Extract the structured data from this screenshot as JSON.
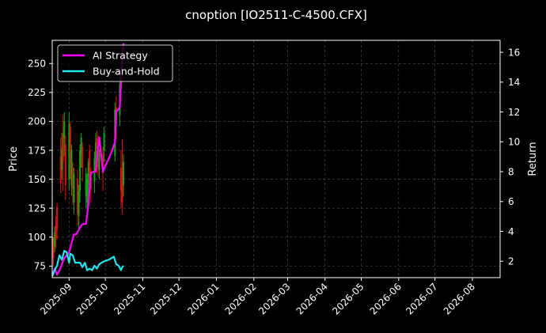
{
  "chart_data": {
    "type": "line",
    "title": "cnoption [IO2511-C-4500.CFX]",
    "ylabel_left": "Price",
    "ylabel_right": "Return",
    "left_ylim": [
      65,
      270
    ],
    "right_ylim": [
      0.9,
      16.8
    ],
    "left_yticks": [
      "75",
      "100",
      "125",
      "150",
      "175",
      "200",
      "225",
      "250"
    ],
    "right_yticks": [
      "2",
      "4",
      "6",
      "8",
      "10",
      "12",
      "14",
      "16"
    ],
    "x_range": [
      "2025-08-18",
      "2026-08-24"
    ],
    "x_ticks": [
      "2025-09",
      "2025-10",
      "2025-11",
      "2025-12",
      "2026-01",
      "2026-02",
      "2026-03",
      "2026-04",
      "2026-05",
      "2026-06",
      "2026-07",
      "2026-08"
    ],
    "x_tick_dates": [
      "2025-09-01",
      "2025-10-01",
      "2025-11-01",
      "2025-12-01",
      "2026-01-01",
      "2026-02-01",
      "2026-03-01",
      "2026-04-01",
      "2026-05-01",
      "2026-06-01",
      "2026-07-01",
      "2026-08-01"
    ],
    "grid": true,
    "legend_position": "top-left",
    "series": [
      {
        "name": "AI Strategy",
        "axis": "right",
        "color": "#ff00ff",
        "points": [
          [
            "2025-08-18",
            1.0
          ],
          [
            "2025-08-20",
            1.5
          ],
          [
            "2025-08-22",
            1.1
          ],
          [
            "2025-08-24",
            1.4
          ],
          [
            "2025-08-26",
            1.8
          ],
          [
            "2025-08-28",
            2.2
          ],
          [
            "2025-08-30",
            2.4
          ],
          [
            "2025-09-01",
            2.6
          ],
          [
            "2025-09-03",
            3.2
          ],
          [
            "2025-09-05",
            3.8
          ],
          [
            "2025-09-07",
            3.8
          ],
          [
            "2025-09-09",
            4.1
          ],
          [
            "2025-09-11",
            4.4
          ],
          [
            "2025-09-13",
            4.5
          ],
          [
            "2025-09-15",
            4.5
          ],
          [
            "2025-09-17",
            5.8
          ],
          [
            "2025-09-19",
            7.9
          ],
          [
            "2025-09-21",
            8.0
          ],
          [
            "2025-09-23",
            8.0
          ],
          [
            "2025-09-25",
            9.6
          ],
          [
            "2025-09-26",
            10.3
          ],
          [
            "2025-09-27",
            9.5
          ],
          [
            "2025-09-29",
            8.0
          ],
          [
            "2025-10-01",
            8.4
          ],
          [
            "2025-10-04",
            8.9
          ],
          [
            "2025-10-07",
            9.5
          ],
          [
            "2025-10-09",
            10.0
          ],
          [
            "2025-10-10",
            12.0
          ],
          [
            "2025-10-13",
            12.3
          ],
          [
            "2025-10-15",
            15.8
          ],
          [
            "2025-10-16",
            16.6
          ]
        ]
      },
      {
        "name": "Buy-and-Hold",
        "axis": "right",
        "color": "#22e6f0",
        "points": [
          [
            "2025-08-18",
            1.0
          ],
          [
            "2025-08-20",
            1.4
          ],
          [
            "2025-08-22",
            1.7
          ],
          [
            "2025-08-24",
            2.4
          ],
          [
            "2025-08-26",
            2.1
          ],
          [
            "2025-08-28",
            2.7
          ],
          [
            "2025-08-30",
            2.6
          ],
          [
            "2025-09-01",
            1.9
          ],
          [
            "2025-09-02",
            2.5
          ],
          [
            "2025-09-04",
            2.4
          ],
          [
            "2025-09-06",
            1.9
          ],
          [
            "2025-09-08",
            1.9
          ],
          [
            "2025-09-10",
            1.9
          ],
          [
            "2025-09-12",
            1.6
          ],
          [
            "2025-09-14",
            1.9
          ],
          [
            "2025-09-16",
            1.4
          ],
          [
            "2025-09-18",
            1.5
          ],
          [
            "2025-09-20",
            1.4
          ],
          [
            "2025-09-22",
            1.7
          ],
          [
            "2025-09-24",
            1.5
          ],
          [
            "2025-09-26",
            1.8
          ],
          [
            "2025-09-30",
            2.0
          ],
          [
            "2025-10-04",
            2.1
          ],
          [
            "2025-10-08",
            2.3
          ],
          [
            "2025-10-10",
            1.8
          ],
          [
            "2025-10-12",
            1.7
          ],
          [
            "2025-10-14",
            1.4
          ],
          [
            "2025-10-15",
            1.6
          ],
          [
            "2025-10-16",
            1.7
          ]
        ]
      }
    ],
    "candles": {
      "axis": "left",
      "up_color": "#16a316",
      "down_color": "#e01010",
      "bars": [
        {
          "date": "2025-08-18",
          "open": 88,
          "close": 100,
          "low": 80,
          "high": 106
        },
        {
          "date": "2025-08-19",
          "open": 95,
          "close": 82,
          "low": 76,
          "high": 100
        },
        {
          "date": "2025-08-20",
          "open": 92,
          "close": 104,
          "low": 87,
          "high": 109
        },
        {
          "date": "2025-08-21",
          "open": 110,
          "close": 98,
          "low": 90,
          "high": 118
        },
        {
          "date": "2025-08-22",
          "open": 126,
          "close": 107,
          "low": 98,
          "high": 130
        },
        {
          "date": "2025-08-25",
          "open": 170,
          "close": 146,
          "low": 138,
          "high": 186
        },
        {
          "date": "2025-08-26",
          "open": 158,
          "close": 176,
          "low": 150,
          "high": 190
        },
        {
          "date": "2025-08-27",
          "open": 190,
          "close": 165,
          "low": 140,
          "high": 206
        },
        {
          "date": "2025-08-28",
          "open": 185,
          "close": 200,
          "low": 170,
          "high": 208
        },
        {
          "date": "2025-08-29",
          "open": 180,
          "close": 145,
          "low": 132,
          "high": 188
        },
        {
          "date": "2025-09-01",
          "open": 150,
          "close": 198,
          "low": 140,
          "high": 208
        },
        {
          "date": "2025-09-02",
          "open": 195,
          "close": 165,
          "low": 150,
          "high": 200
        },
        {
          "date": "2025-09-03",
          "open": 145,
          "close": 175,
          "low": 136,
          "high": 180
        },
        {
          "date": "2025-09-04",
          "open": 160,
          "close": 142,
          "low": 128,
          "high": 165
        },
        {
          "date": "2025-09-05",
          "open": 130,
          "close": 155,
          "low": 120,
          "high": 160
        },
        {
          "date": "2025-09-08",
          "open": 150,
          "close": 120,
          "low": 110,
          "high": 158
        },
        {
          "date": "2025-09-09",
          "open": 118,
          "close": 140,
          "low": 105,
          "high": 145
        },
        {
          "date": "2025-09-10",
          "open": 140,
          "close": 175,
          "low": 130,
          "high": 180
        },
        {
          "date": "2025-09-11",
          "open": 172,
          "close": 186,
          "low": 160,
          "high": 190
        },
        {
          "date": "2025-09-12",
          "open": 178,
          "close": 160,
          "low": 148,
          "high": 182
        },
        {
          "date": "2025-09-15",
          "open": 135,
          "close": 155,
          "low": 125,
          "high": 160
        },
        {
          "date": "2025-09-16",
          "open": 130,
          "close": 150,
          "low": 120,
          "high": 155
        },
        {
          "date": "2025-09-17",
          "open": 145,
          "close": 165,
          "low": 135,
          "high": 168
        },
        {
          "date": "2025-09-18",
          "open": 175,
          "close": 150,
          "low": 142,
          "high": 180
        },
        {
          "date": "2025-09-19",
          "open": 152,
          "close": 142,
          "low": 130,
          "high": 160
        },
        {
          "date": "2025-09-22",
          "open": 148,
          "close": 168,
          "low": 138,
          "high": 174
        },
        {
          "date": "2025-09-23",
          "open": 168,
          "close": 182,
          "low": 160,
          "high": 190
        },
        {
          "date": "2025-09-24",
          "open": 185,
          "close": 168,
          "low": 155,
          "high": 192
        },
        {
          "date": "2025-09-25",
          "open": 180,
          "close": 160,
          "low": 152,
          "high": 188
        },
        {
          "date": "2025-09-26",
          "open": 158,
          "close": 172,
          "low": 150,
          "high": 176
        },
        {
          "date": "2025-09-29",
          "open": 172,
          "close": 155,
          "low": 140,
          "high": 178
        },
        {
          "date": "2025-09-30",
          "open": 175,
          "close": 190,
          "low": 165,
          "high": 195
        },
        {
          "date": "2025-10-09",
          "open": 170,
          "close": 210,
          "low": 165,
          "high": 216
        },
        {
          "date": "2025-10-10",
          "open": 212,
          "close": 198,
          "low": 185,
          "high": 222
        },
        {
          "date": "2025-10-13",
          "open": 205,
          "close": 232,
          "low": 196,
          "high": 246
        },
        {
          "date": "2025-10-14",
          "open": 160,
          "close": 140,
          "low": 125,
          "high": 175
        },
        {
          "date": "2025-10-15",
          "open": 150,
          "close": 130,
          "low": 120,
          "high": 185
        },
        {
          "date": "2025-10-16",
          "open": 145,
          "close": 165,
          "low": 135,
          "high": 172
        }
      ]
    }
  }
}
